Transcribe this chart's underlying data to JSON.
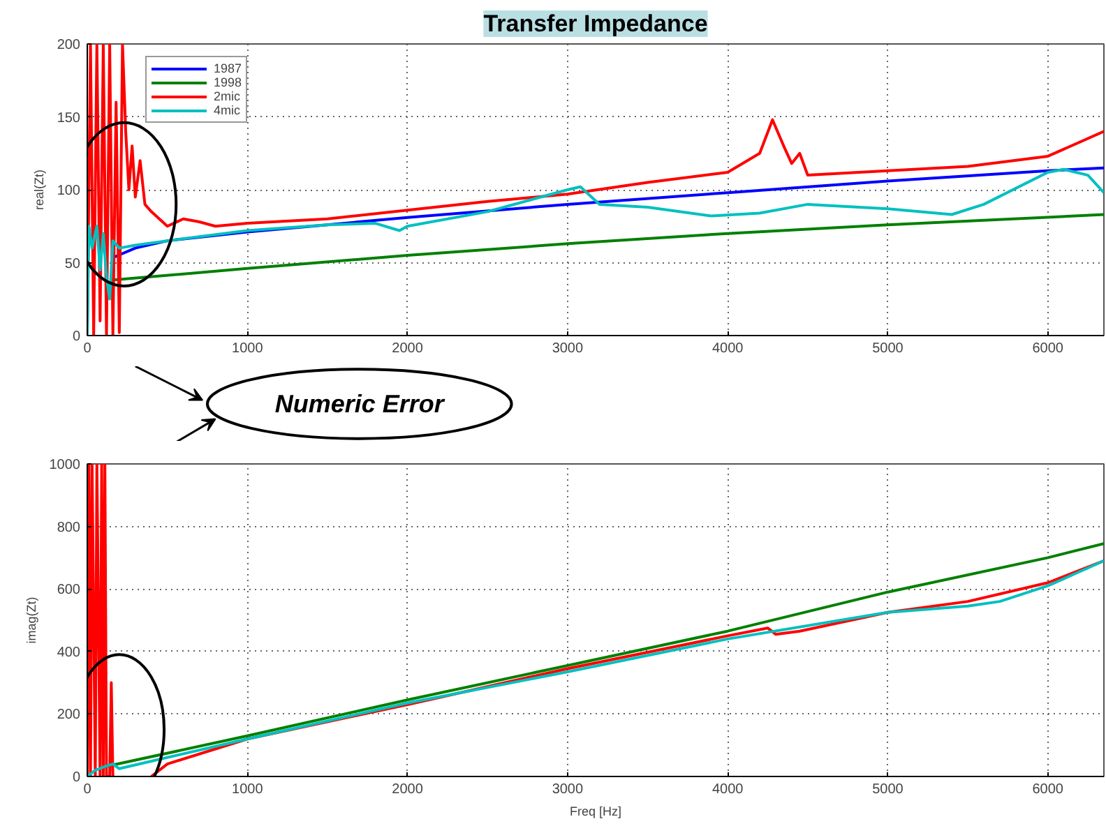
{
  "chart_data": [
    {
      "type": "line",
      "title": "Transfer Impedance",
      "ylabel": "real(Zt)",
      "xlim": [
        0,
        6350
      ],
      "ylim": [
        0,
        200
      ],
      "xticks": [
        0,
        1000,
        2000,
        3000,
        4000,
        5000,
        6000
      ],
      "yticks": [
        0,
        50,
        100,
        150,
        200
      ],
      "grid": true,
      "legend": "top left",
      "annotations": [
        "Numeric Error"
      ],
      "series": [
        {
          "name": "1987",
          "color": "#0000ff",
          "x": [
            150,
            300,
            500,
            1000,
            1500,
            2000,
            3000,
            4000,
            5000,
            6000,
            6350
          ],
          "values": [
            53,
            60,
            65,
            71,
            76,
            81,
            90,
            98,
            106,
            113,
            115
          ]
        },
        {
          "name": "1998",
          "color": "#008000",
          "x": [
            150,
            1000,
            2000,
            3000,
            4000,
            5000,
            6350
          ],
          "values": [
            38,
            46,
            55,
            63,
            70,
            76,
            83
          ]
        },
        {
          "name": "2mic",
          "color": "#ff0000",
          "x": [
            0,
            20,
            40,
            60,
            80,
            100,
            120,
            140,
            160,
            180,
            200,
            220,
            240,
            260,
            280,
            300,
            330,
            360,
            400,
            450,
            500,
            600,
            700,
            800,
            1000,
            1500,
            2000,
            2500,
            3000,
            3500,
            4000,
            4200,
            4280,
            4350,
            4400,
            4450,
            4500,
            5000,
            5500,
            6000,
            6350
          ],
          "values": [
            0,
            200,
            0,
            200,
            10,
            200,
            0,
            200,
            0,
            160,
            2,
            200,
            140,
            100,
            130,
            95,
            120,
            90,
            85,
            80,
            75,
            80,
            78,
            75,
            77,
            80,
            86,
            92,
            97,
            105,
            112,
            125,
            148,
            130,
            118,
            125,
            110,
            113,
            116,
            123,
            140
          ]
        },
        {
          "name": "4mic",
          "color": "#00c0c0",
          "x": [
            0,
            10,
            30,
            60,
            80,
            100,
            120,
            140,
            160,
            200,
            300,
            500,
            1000,
            1500,
            1800,
            1950,
            2000,
            2500,
            3000,
            3080,
            3200,
            3500,
            3900,
            4200,
            4500,
            5000,
            5400,
            5600,
            6000,
            6100,
            6250,
            6350
          ],
          "values": [
            0,
            75,
            60,
            75,
            45,
            70,
            40,
            25,
            65,
            60,
            62,
            65,
            72,
            76,
            77,
            72,
            75,
            85,
            100,
            102,
            90,
            88,
            82,
            84,
            90,
            87,
            83,
            90,
            112,
            114,
            110,
            98
          ]
        }
      ]
    },
    {
      "type": "line",
      "xlabel": "Freq [Hz]",
      "ylabel": "imag(Zt)",
      "xlim": [
        0,
        6350
      ],
      "ylim": [
        0,
        1000
      ],
      "xticks": [
        0,
        1000,
        2000,
        3000,
        4000,
        5000,
        6000
      ],
      "yticks": [
        0,
        200,
        400,
        600,
        800,
        1000
      ],
      "grid": true,
      "series": [
        {
          "color": "#008000",
          "x": [
            100,
            1000,
            2000,
            3000,
            4000,
            5000,
            6000,
            6350
          ],
          "values": [
            30,
            130,
            245,
            355,
            465,
            590,
            700,
            745
          ]
        },
        {
          "color": "#ff0000",
          "x": [
            0,
            10,
            20,
            30,
            50,
            60,
            80,
            90,
            100,
            110,
            120,
            140,
            150,
            160,
            170,
            400,
            500,
            1000,
            2000,
            3000,
            4000,
            4250,
            4300,
            4450,
            5000,
            5500,
            6000,
            6350
          ],
          "values": [
            0,
            1000,
            0,
            1000,
            0,
            1000,
            0,
            1000,
            0,
            1000,
            0,
            0,
            300,
            0,
            null,
            0,
            40,
            120,
            230,
            345,
            450,
            475,
            455,
            465,
            525,
            560,
            620,
            690
          ]
        },
        {
          "color": "#00c0c0",
          "x": [
            0,
            50,
            100,
            160,
            200,
            1000,
            2000,
            3000,
            4000,
            5000,
            5500,
            5700,
            6000,
            6350
          ],
          "values": [
            0,
            20,
            30,
            40,
            25,
            120,
            235,
            335,
            440,
            525,
            545,
            560,
            610,
            690
          ]
        }
      ]
    }
  ]
}
